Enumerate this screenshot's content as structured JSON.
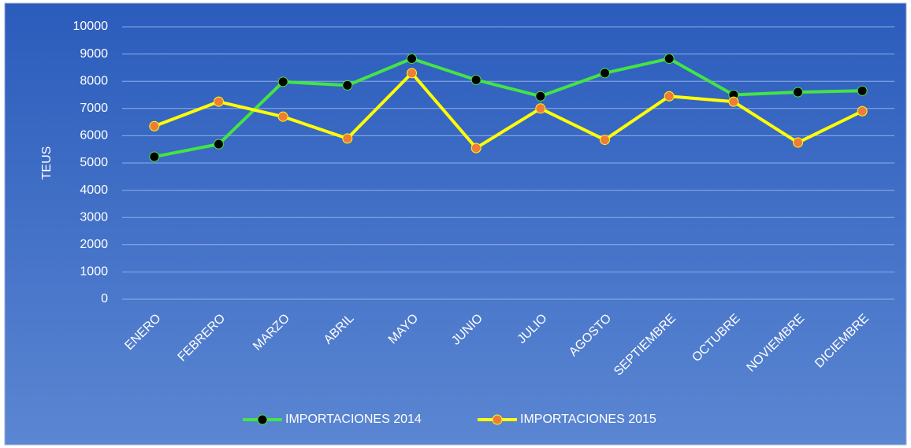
{
  "chart_data": {
    "type": "line",
    "categories": [
      "ENERO",
      "FEBRERO",
      "MARZO",
      "ABRIL",
      "MAYO",
      "JUNIO",
      "JULIO",
      "AGOSTO",
      "SEPTIEMBRE",
      "OCTUBRE",
      "NOVIEMBRE",
      "DICIEMBRE"
    ],
    "y_label": "TEUS",
    "series": [
      {
        "name": "IMPORTACIONES 2014",
        "color": "#44e444",
        "marker_color": "#000000",
        "values": [
          5230,
          5690,
          7980,
          7850,
          8830,
          8050,
          7450,
          8300,
          8830,
          7500,
          7600,
          7650
        ]
      },
      {
        "name": "IMPORTACIONES 2015",
        "color": "#ffff00",
        "marker_color": "#f07c3a",
        "values": [
          6350,
          7250,
          6700,
          5900,
          8300,
          5550,
          7000,
          5850,
          7450,
          7250,
          5750,
          6900
        ]
      }
    ],
    "ylim": [
      0,
      10000
    ],
    "yticks": [
      0,
      1000,
      2000,
      3000,
      4000,
      5000,
      6000,
      7000,
      8000,
      9000,
      10000
    ],
    "grid": true,
    "legend": "bottom"
  }
}
